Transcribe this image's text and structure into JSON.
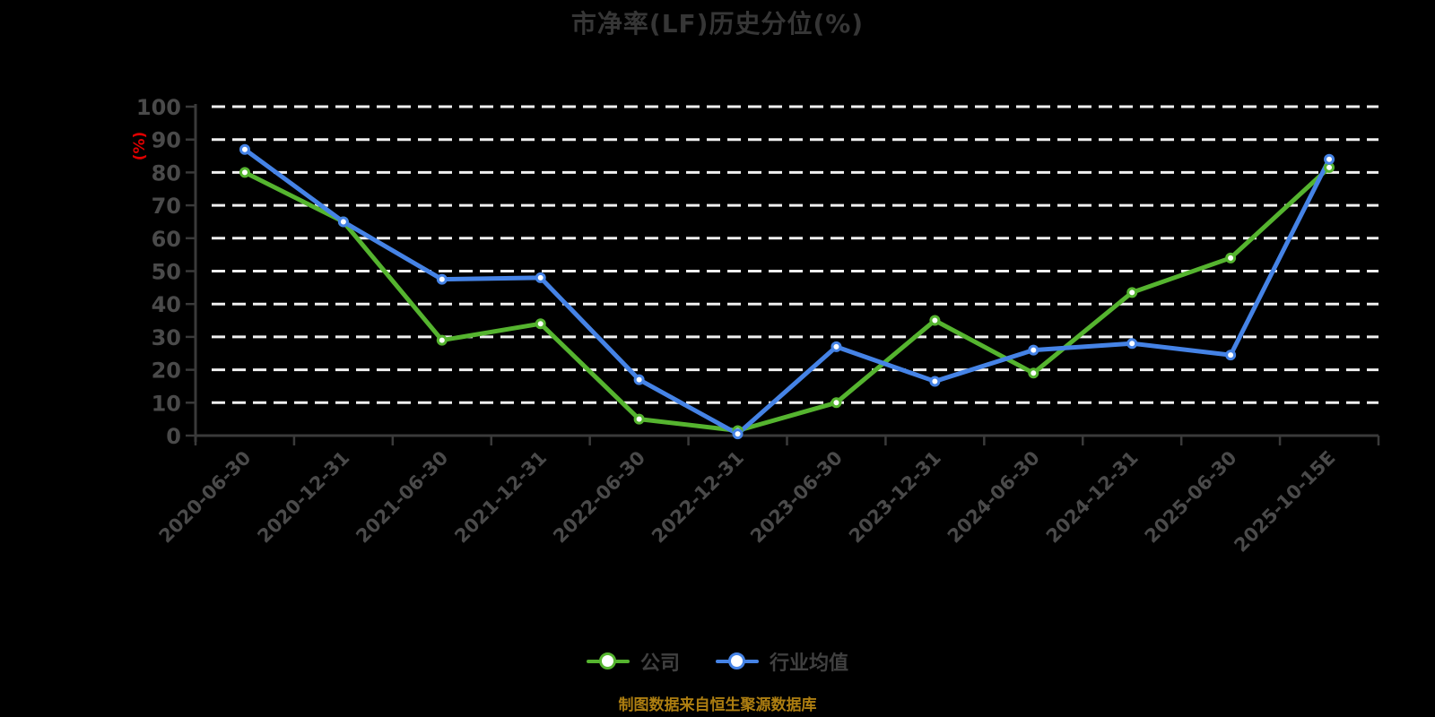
{
  "chart_data": {
    "type": "line",
    "title": "市净率(LF)历史分位(%)",
    "ylabel": "(%)",
    "xlabel": "",
    "ylim": [
      0,
      100
    ],
    "y_tick_step": 10,
    "grid": "horizontal dashed lines, white",
    "legend_position": "bottom",
    "categories": [
      "2020-06-30",
      "2020-12-31",
      "2021-06-30",
      "2021-12-31",
      "2022-06-30",
      "2022-12-31",
      "2023-06-30",
      "2023-12-31",
      "2024-06-30",
      "2024-12-31",
      "2025-06-30",
      "2025-10-15E"
    ],
    "series": [
      {
        "name": "公司",
        "color": "#55B42F",
        "values": [
          80,
          65,
          29,
          34,
          5,
          1.5,
          10,
          35,
          19,
          43.5,
          54,
          81.5
        ]
      },
      {
        "name": "行业均值",
        "color": "#4583E6",
        "values": [
          87,
          65,
          47.5,
          48,
          17,
          0.5,
          27,
          16.5,
          26,
          28,
          24.5,
          84
        ]
      }
    ],
    "source_note": "制图数据来自恒生聚源数据库"
  },
  "colors": {
    "background": "#000000",
    "title_text": "#363636",
    "axis_line": "#3a3a3a",
    "tick_label": "#4a4a4a",
    "grid_line": "#f0f0f0",
    "unit_label": "#e00000",
    "legend_text": "#404040",
    "source_text": "#ad7e11",
    "marker_fill": "#ffffff"
  }
}
